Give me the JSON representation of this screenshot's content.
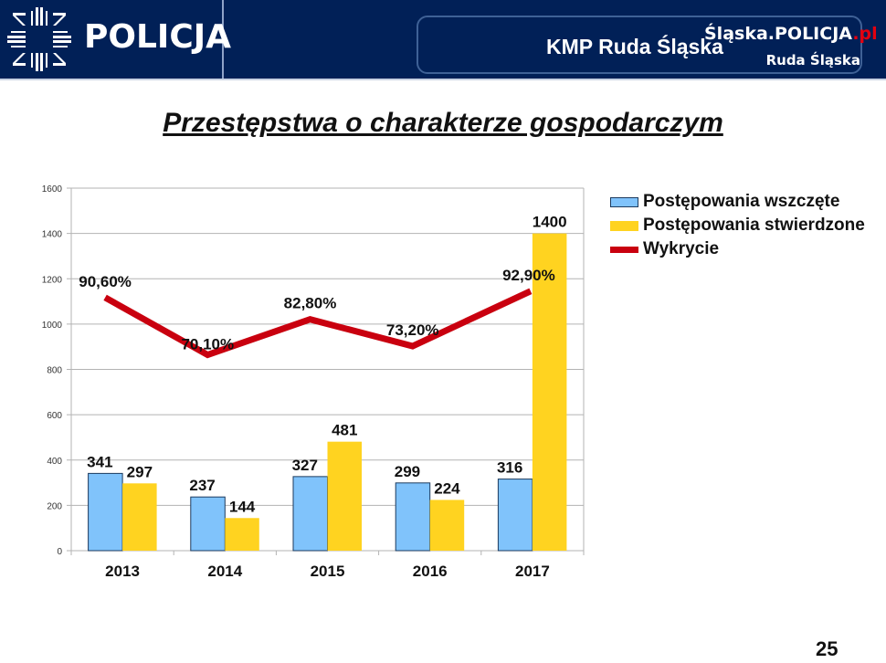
{
  "header": {
    "logo_text": "POLICJA",
    "unit_name": "KMP Ruda Śląska",
    "site_name_main": "Śląska.POLICJA",
    "site_name_tld": ".pl",
    "site_subtitle": "Ruda Śląska",
    "colors": {
      "background": "#012057",
      "accent_red": "#e3000f"
    }
  },
  "slide": {
    "title": "Przestępstwa o charakterze gospodarczym",
    "page_number": "25"
  },
  "chart_data": {
    "type": "bar",
    "title": "Przestępstwa o charakterze gospodarczym",
    "categories": [
      "2013",
      "2014",
      "2015",
      "2016",
      "2017"
    ],
    "ylim": [
      0,
      1600
    ],
    "yticks": [
      0,
      200,
      400,
      600,
      800,
      1000,
      1200,
      1400,
      1600
    ],
    "grid": true,
    "legend_position": "right",
    "series": [
      {
        "name": "Postępowania wszczęte",
        "type": "bar",
        "color": "#80c3fb",
        "values": [
          341,
          237,
          327,
          299,
          316
        ],
        "labels": [
          "341",
          "237",
          "327",
          "299",
          "316"
        ]
      },
      {
        "name": "Postępowania stwierdzone",
        "type": "bar",
        "color": "#ffd320",
        "values": [
          297,
          144,
          481,
          224,
          1400
        ],
        "labels": [
          "297",
          "144",
          "481",
          "224",
          "1400"
        ]
      },
      {
        "name": "Wykrycie",
        "type": "line",
        "color": "#c9000f",
        "unit": "%",
        "values": [
          90.6,
          70.1,
          82.8,
          73.2,
          92.9
        ],
        "labels": [
          "90,60%",
          "70,10%",
          "82,80%",
          "73,20%",
          "92,90%"
        ]
      }
    ]
  }
}
